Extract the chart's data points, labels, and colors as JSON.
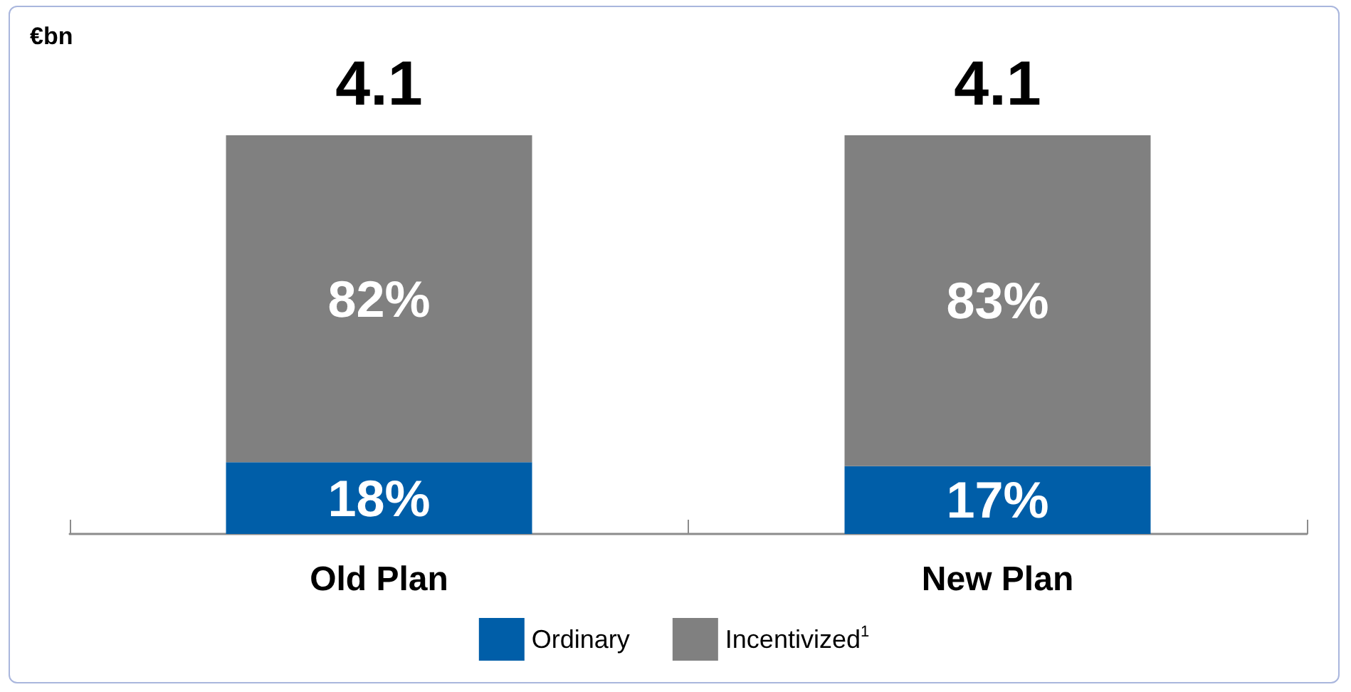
{
  "chart_data": {
    "type": "bar",
    "stacked": true,
    "categories": [
      "Old Plan",
      "New Plan"
    ],
    "series": [
      {
        "name": "Ordinary",
        "color": "#005ea8",
        "values": [
          18,
          17
        ],
        "value_labels": [
          "18%",
          "17%"
        ]
      },
      {
        "name": "Incentivized$^{1}$",
        "color": "#808080",
        "values": [
          82,
          83
        ],
        "value_labels": [
          "82%",
          "83%"
        ]
      }
    ],
    "annotations": [
      "€bn",
      {
        "text": "4.1",
        "x": "Old Plan",
        "y": 100
      },
      {
        "text": "4.1",
        "x": "New Plan",
        "y": 100
      }
    ],
    "legend": "bottom",
    "grid": false
  }
}
